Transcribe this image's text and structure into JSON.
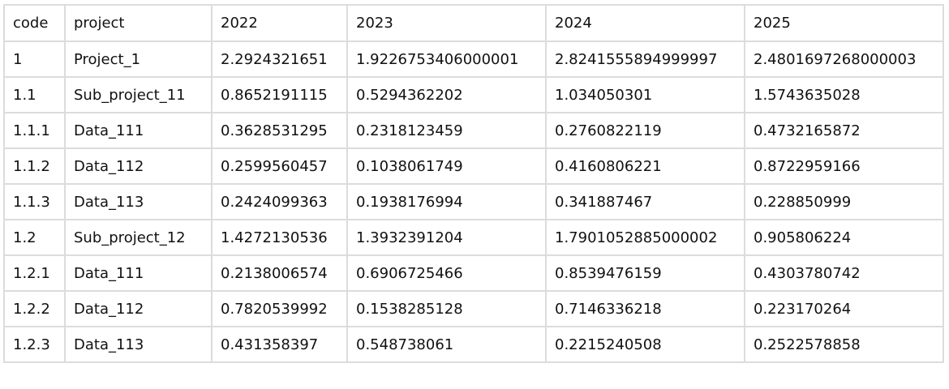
{
  "table": {
    "columns": [
      "code",
      "project",
      "2022",
      "2023",
      "2024",
      "2025"
    ],
    "rows": [
      [
        "1",
        "Project_1",
        "2.2924321651",
        "1.9226753406000001",
        "2.8241555894999997",
        "2.4801697268000003"
      ],
      [
        "1.1",
        "Sub_project_11",
        "0.8652191115",
        "0.5294362202",
        "1.034050301",
        "1.5743635028"
      ],
      [
        "1.1.1",
        "Data_111",
        "0.3628531295",
        "0.2318123459",
        "0.2760822119",
        "0.4732165872"
      ],
      [
        "1.1.2",
        "Data_112",
        "0.2599560457",
        "0.1038061749",
        "0.4160806221",
        "0.8722959166"
      ],
      [
        "1.1.3",
        "Data_113",
        "0.2424099363",
        "0.1938176994",
        "0.341887467",
        "0.228850999"
      ],
      [
        "1.2",
        "Sub_project_12",
        "1.4272130536",
        "1.3932391204",
        "1.7901052885000002",
        "0.905806224"
      ],
      [
        "1.2.1",
        "Data_111",
        "0.2138006574",
        "0.6906725466",
        "0.8539476159",
        "0.4303780742"
      ],
      [
        "1.2.2",
        "Data_112",
        "0.7820539992",
        "0.1538285128",
        "0.7146336218",
        "0.223170264"
      ],
      [
        "1.2.3",
        "Data_113",
        "0.431358397",
        "0.548738061",
        "0.2215240508",
        "0.2522578858"
      ]
    ]
  }
}
